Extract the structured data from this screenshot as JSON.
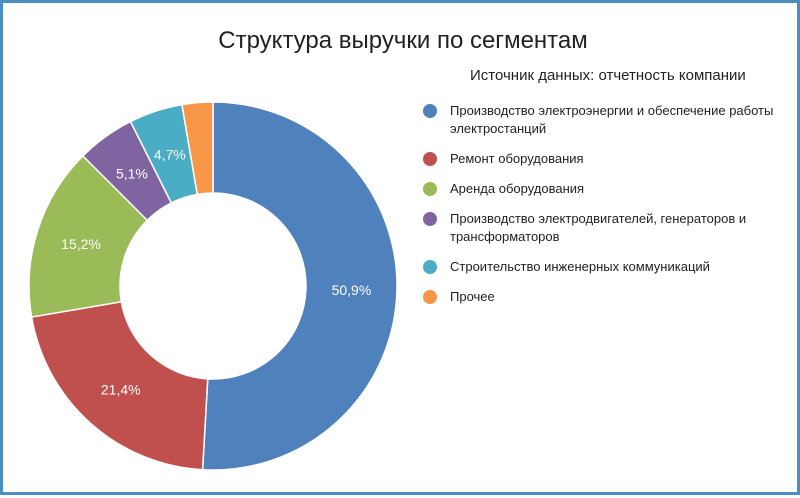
{
  "chart_data": {
    "type": "pie",
    "variant": "donut",
    "title": "Структура выручки по сегментам",
    "subtitle": "Источник данных: отчетность компании",
    "legend_position": "right",
    "slices": [
      {
        "name": "Производство электроэнергии и обеспечение работы электростанций",
        "value": 50.9,
        "label": "50,9%",
        "color": "#4f81bd"
      },
      {
        "name": "Ремонт оборудования",
        "value": 21.4,
        "label": "21,4%",
        "color": "#c0504d"
      },
      {
        "name": "Аренда оборудования",
        "value": 15.2,
        "label": "15,2%",
        "color": "#9bbb59"
      },
      {
        "name": "Производство электродвигателей, генераторов и трансформаторов",
        "value": 5.1,
        "label": "5,1%",
        "color": "#8064a2"
      },
      {
        "name": "Строительство инженерных коммуникаций",
        "value": 4.7,
        "label": "4,7%",
        "color": "#4bacc6"
      },
      {
        "name": "Прочее",
        "value": 2.7,
        "label": "",
        "color": "#f79646"
      }
    ]
  }
}
